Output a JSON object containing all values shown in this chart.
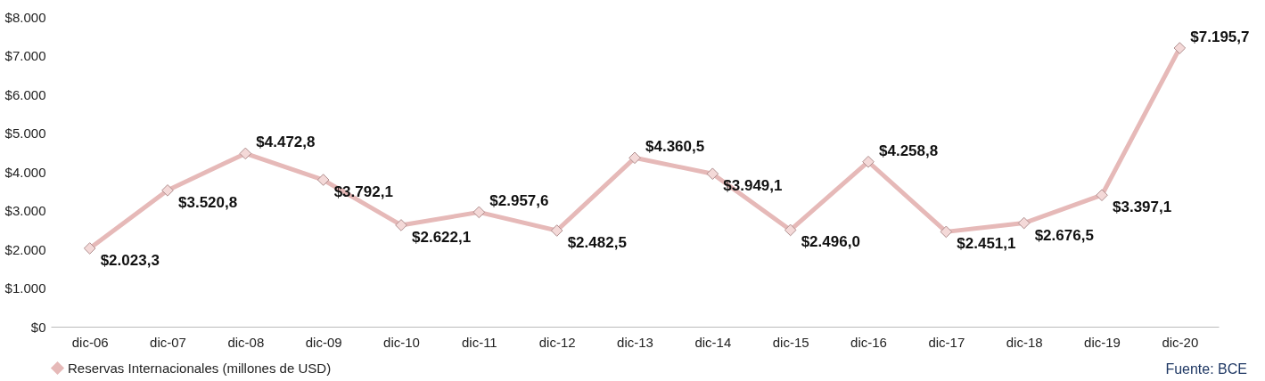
{
  "chart_data": {
    "type": "line",
    "categories": [
      "dic-06",
      "dic-07",
      "dic-08",
      "dic-09",
      "dic-10",
      "dic-11",
      "dic-12",
      "dic-13",
      "dic-14",
      "dic-15",
      "dic-16",
      "dic-17",
      "dic-18",
      "dic-19",
      "dic-20"
    ],
    "series": [
      {
        "name": "Reservas Internacionales (millones de USD)",
        "color": "#e6b9b8",
        "values": [
          2023.3,
          3520.8,
          4472.8,
          3792.1,
          2622.1,
          2957.6,
          2482.5,
          4360.5,
          3949.1,
          2496.0,
          4258.8,
          2451.1,
          2676.5,
          3397.1,
          7195.7
        ],
        "value_labels": [
          "$2.023,3",
          "$3.520,8",
          "$4.472,8",
          "$3.792,1",
          "$2.622,1",
          "$2.957,6",
          "$2.482,5",
          "$4.360,5",
          "$3.949,1",
          "$2.496,0",
          "$4.258,8",
          "$2.451,1",
          "$2.676,5",
          "$3.397,1",
          "$7.195,7"
        ]
      }
    ],
    "ylim": [
      0,
      8000
    ],
    "yticks": [
      {
        "value": 0,
        "label": "$0"
      },
      {
        "value": 1000,
        "label": "$1.000"
      },
      {
        "value": 2000,
        "label": "$2.000"
      },
      {
        "value": 3000,
        "label": "$3.000"
      },
      {
        "value": 4000,
        "label": "$4.000"
      },
      {
        "value": 5000,
        "label": "$5.000"
      },
      {
        "value": 6000,
        "label": "$6.000"
      },
      {
        "value": 7000,
        "label": "$7.000"
      },
      {
        "value": 8000,
        "label": "$8.000"
      }
    ],
    "grid": false,
    "legend": "bottom",
    "marker": "diamond",
    "line_style": "solid",
    "annotations": [
      "Fuente: BCE"
    ]
  }
}
